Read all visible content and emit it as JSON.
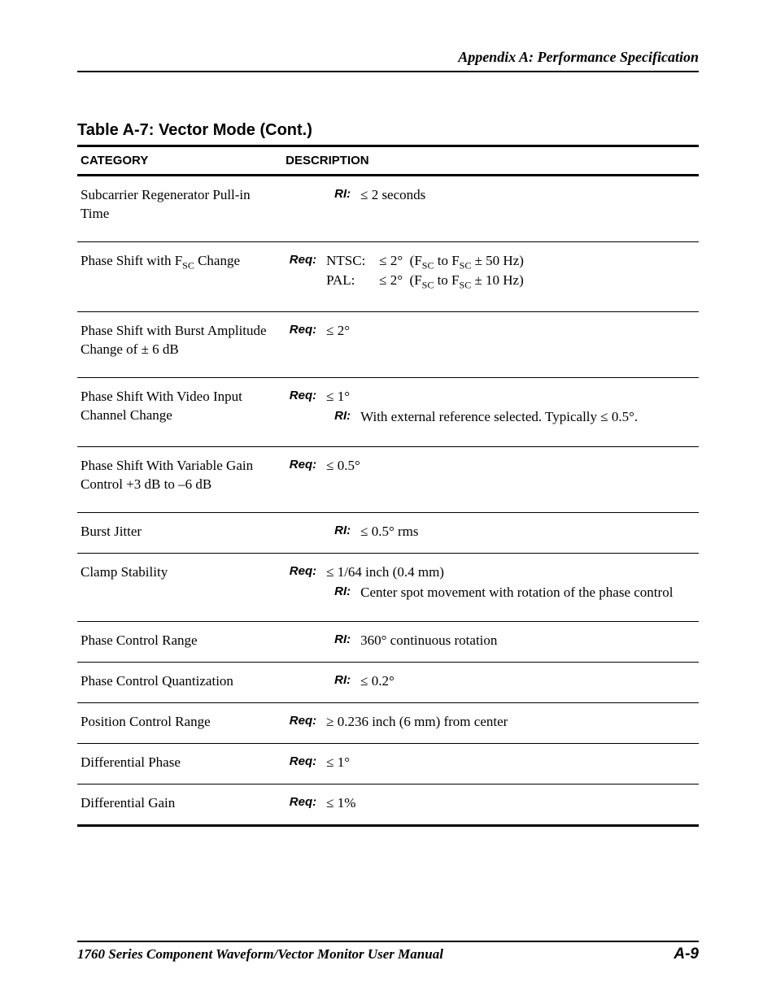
{
  "header": {
    "title": "Appendix A: Performance Specification"
  },
  "table": {
    "title": "Table A-7: Vector Mode (Cont.)",
    "columns": [
      "CATEGORY",
      "DESCRIPTION"
    ],
    "rows": [
      {
        "category": "Subcarrier Regenerator Pull-in Time",
        "specs": [
          {
            "tag": "RI:",
            "indent": true,
            "value": "≤ 2 seconds"
          }
        ]
      },
      {
        "category_html": "Phase Shift with F<span class='sub'>SC</span> Change",
        "specs": [
          {
            "tag": "Req:",
            "value_html": "NTSC:&nbsp;&nbsp;&nbsp;&nbsp;≤ 2°&nbsp;&nbsp;(F<span class='sub'>SC</span> to F<span class='sub'>SC</span> ± 50 Hz)<br>PAL:&nbsp;&nbsp;&nbsp;&nbsp;&nbsp;&nbsp;&nbsp;≤ 2°&nbsp;&nbsp;(F<span class='sub'>SC</span> to F<span class='sub'>SC</span> ± 10 Hz)"
          }
        ]
      },
      {
        "category": "Phase Shift with Burst Amplitude Change of ± 6 dB",
        "specs": [
          {
            "tag": "Req:",
            "value": "≤  2°"
          }
        ]
      },
      {
        "category": "Phase Shift With Video Input Channel Change",
        "specs": [
          {
            "tag": "Req:",
            "value": "≤ 1°"
          },
          {
            "tag": "RI:",
            "indent": true,
            "value": "With external reference selected. Typically ≤ 0.5°."
          }
        ]
      },
      {
        "category": "Phase Shift With Variable Gain Control +3 dB to –6 dB",
        "specs": [
          {
            "tag": "Req:",
            "value": "≤ 0.5°"
          }
        ]
      },
      {
        "category": "Burst Jitter",
        "short": true,
        "specs": [
          {
            "tag": "RI:",
            "indent": true,
            "value": "≤ 0.5° rms"
          }
        ]
      },
      {
        "category": "Clamp Stability",
        "specs": [
          {
            "tag": "Req:",
            "value": "≤ 1/64 inch (0.4 mm)"
          },
          {
            "tag": "RI:",
            "indent": true,
            "value": "Center spot movement with rotation of the phase control"
          }
        ]
      },
      {
        "category": "Phase Control Range",
        "short": true,
        "specs": [
          {
            "tag": "RI:",
            "indent": true,
            "value": "360° continuous rotation"
          }
        ]
      },
      {
        "category": "Phase Control Quantization",
        "short": true,
        "specs": [
          {
            "tag": "RI:",
            "indent": true,
            "value": "≤ 0.2°"
          }
        ]
      },
      {
        "category": "Position Control Range",
        "short": true,
        "specs": [
          {
            "tag": "Req:",
            "value": "≥ 0.236 inch (6 mm) from center"
          }
        ]
      },
      {
        "category": "Differential Phase",
        "short": true,
        "specs": [
          {
            "tag": "Req:",
            "value": "≤ 1°"
          }
        ]
      },
      {
        "category": "Differential Gain",
        "short": true,
        "specs": [
          {
            "tag": "Req:",
            "value": "≤ 1%"
          }
        ]
      }
    ]
  },
  "footer": {
    "left": "1760 Series Component Waveform/Vector Monitor User Manual",
    "right": "A-9"
  }
}
